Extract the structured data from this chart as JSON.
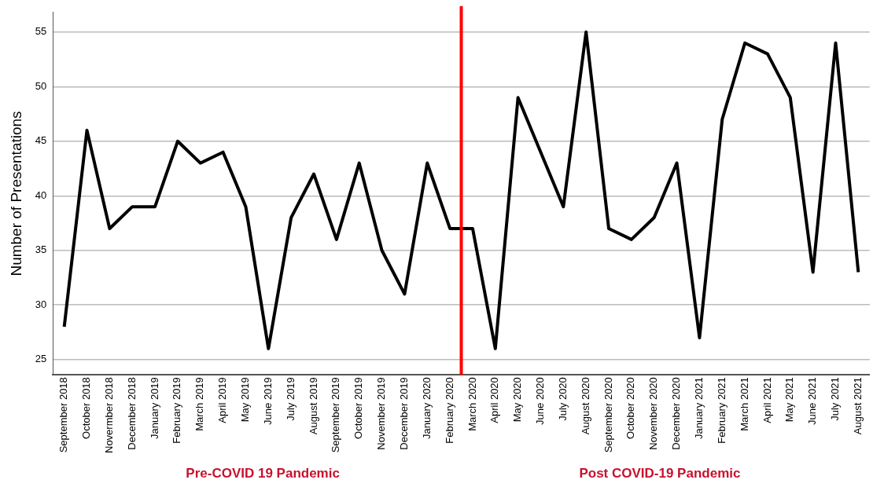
{
  "chart_data": {
    "type": "line",
    "ylabel": "Number of Presentations",
    "categories": [
      "September 2018",
      "October 2018",
      "Novermber 2018",
      "December 2018",
      "January 2019",
      "February 2019",
      "March 2019",
      "April 2019",
      "May 2019",
      "June 2019",
      "July 2019",
      "August 2019",
      "September 2019",
      "October 2019",
      "November 2019",
      "December 2019",
      "January 2020",
      "February 2020",
      "March 2020",
      "April 2020",
      "May 2020",
      "June 2020",
      "July 2020",
      "August 2020",
      "September 2020",
      "October 2020",
      "November 2020",
      "December 2020",
      "January 2021",
      "February 2021",
      "March 2021",
      "April 2021",
      "May 2021",
      "June 2021",
      "July 2021",
      "August 2021"
    ],
    "series": [
      {
        "color": "#000000",
        "values": [
          28,
          46,
          37,
          39,
          39,
          45,
          43,
          44,
          39,
          26,
          38,
          42,
          36,
          43,
          35,
          31,
          43,
          37,
          37,
          26,
          49,
          44,
          39,
          55,
          37,
          36,
          38,
          43,
          27,
          47,
          54,
          53,
          49,
          33,
          54,
          33
        ]
      }
    ],
    "ylim": [
      23.6,
      56.8
    ],
    "yticks": [
      25,
      30,
      35,
      40,
      45,
      50,
      55
    ],
    "grid": "y",
    "legend": false,
    "marker": "none",
    "line_style": "solid",
    "ref_lines": [
      {
        "axis": "x",
        "value": "March 2020",
        "color": "#ff0000"
      }
    ],
    "annotations": [
      "Pre-COVID 19 Pandemic",
      "Post COVID-19 Pandemic"
    ]
  }
}
